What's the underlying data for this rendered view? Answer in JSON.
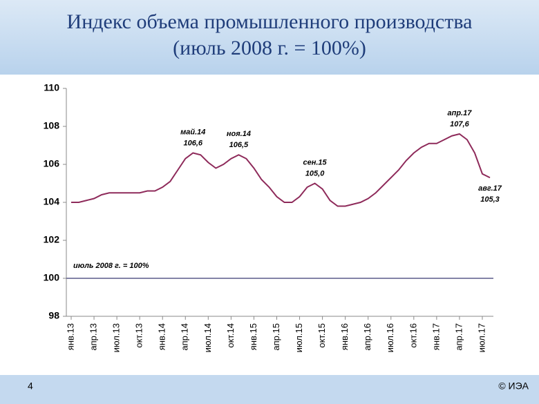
{
  "header": {
    "title": [
      "Индекс объема промышленного производства",
      "(июль 2008 г. = 100%)"
    ]
  },
  "footer": {
    "page": "4",
    "copyright": "© ИЭА"
  },
  "chart_data": {
    "type": "line",
    "color": "#8e2a5a",
    "categories": [
      "янв.13",
      null,
      null,
      "апр.13",
      null,
      null,
      "июл.13",
      null,
      null,
      "окт.13",
      null,
      null,
      "янв.14",
      null,
      null,
      "апр.14",
      null,
      null,
      "июл.14",
      null,
      null,
      "окт.14",
      null,
      null,
      "янв.15",
      null,
      null,
      "апр.15",
      null,
      null,
      "июл.15",
      null,
      null,
      "окт.15",
      null,
      null,
      "янв.16",
      null,
      null,
      "апр.16",
      null,
      null,
      "июл.16",
      null,
      null,
      "окт.16",
      null,
      null,
      "янв.17",
      null,
      null,
      "апр.17",
      null,
      null,
      "июл.17",
      null
    ],
    "values": [
      104.0,
      104.0,
      104.1,
      104.2,
      104.4,
      104.5,
      104.5,
      104.5,
      104.5,
      104.5,
      104.6,
      104.6,
      104.8,
      105.1,
      105.7,
      106.3,
      106.6,
      106.5,
      106.1,
      105.8,
      106.0,
      106.3,
      106.5,
      106.3,
      105.8,
      105.2,
      104.8,
      104.3,
      104.0,
      104.0,
      104.3,
      104.8,
      105.0,
      104.7,
      104.1,
      103.8,
      103.8,
      103.9,
      104.0,
      104.2,
      104.5,
      104.9,
      105.3,
      105.7,
      106.2,
      106.6,
      106.9,
      107.1,
      107.1,
      107.3,
      107.5,
      107.6,
      107.3,
      106.6,
      105.5,
      105.3
    ],
    "point_names": [
      null,
      null,
      null,
      null,
      null,
      null,
      null,
      null,
      null,
      null,
      null,
      null,
      null,
      null,
      null,
      null,
      "май.14",
      null,
      null,
      null,
      null,
      null,
      "ноя.14",
      null,
      null,
      null,
      null,
      null,
      null,
      null,
      null,
      null,
      "сен.15",
      null,
      null,
      null,
      null,
      null,
      null,
      null,
      null,
      null,
      null,
      null,
      null,
      null,
      null,
      null,
      null,
      null,
      null,
      "апр.17",
      null,
      null,
      null,
      "авг.17"
    ],
    "value_labels": [
      null,
      null,
      null,
      null,
      null,
      null,
      null,
      null,
      null,
      null,
      null,
      null,
      null,
      null,
      null,
      null,
      "106,6",
      null,
      null,
      null,
      null,
      null,
      "106,5",
      null,
      null,
      null,
      null,
      null,
      null,
      null,
      null,
      null,
      "105,0",
      null,
      null,
      null,
      null,
      null,
      null,
      null,
      null,
      null,
      null,
      null,
      null,
      null,
      null,
      null,
      null,
      null,
      null,
      "107,6",
      null,
      null,
      null,
      "105,3"
    ],
    "reference": {
      "value": 100,
      "label": "июль 2008 г. = 100%",
      "color": "#5a5a8a"
    },
    "ylim": [
      98,
      110
    ],
    "yticks": [
      98,
      100,
      102,
      104,
      106,
      108,
      110
    ]
  }
}
